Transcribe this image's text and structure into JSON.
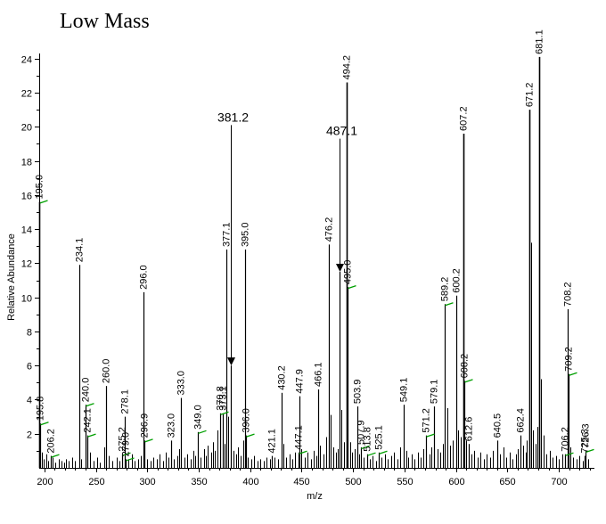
{
  "chart_data": {
    "type": "bar",
    "title": "Low Mass",
    "xlabel": "m/z",
    "ylabel": "Relative Abundance",
    "xlim": [
      195,
      732
    ],
    "ylim": [
      0,
      24.3
    ],
    "xticks": [
      200,
      250,
      300,
      350,
      400,
      450,
      500,
      550,
      600,
      650,
      700
    ],
    "yticks": [
      2,
      4,
      6,
      8,
      10,
      12,
      14,
      16,
      18,
      20,
      22,
      24
    ],
    "grid": false,
    "legend": "none",
    "peak_color": "#000000",
    "marker_color": "#00a000",
    "labeled_peaks": [
      {
        "x": 195.0,
        "y": 15.6,
        "label": "195.0",
        "marker": true
      },
      {
        "x": 195.8,
        "y": 2.6,
        "label": "195.8",
        "marker": true
      },
      {
        "x": 206.2,
        "y": 0.7,
        "label": "206.2",
        "marker": true
      },
      {
        "x": 234.1,
        "y": 11.9,
        "label": "234.1",
        "marker": false
      },
      {
        "x": 240.0,
        "y": 3.7,
        "label": "240.0",
        "marker": true
      },
      {
        "x": 242.1,
        "y": 1.9,
        "label": "242.1",
        "marker": true
      },
      {
        "x": 260.0,
        "y": 4.8,
        "label": "260.0",
        "marker": false
      },
      {
        "x": 275.2,
        "y": 0.8,
        "label": "275.2",
        "marker": true
      },
      {
        "x": 278.1,
        "y": 3.0,
        "label": "278.1",
        "marker": false
      },
      {
        "x": 279.0,
        "y": 0.5,
        "label": "279.0",
        "marker": true
      },
      {
        "x": 296.0,
        "y": 10.3,
        "label": "296.0",
        "marker": false
      },
      {
        "x": 296.9,
        "y": 1.6,
        "label": "296.9",
        "marker": true
      },
      {
        "x": 323.0,
        "y": 1.6,
        "label": "323.0",
        "marker": false
      },
      {
        "x": 333.0,
        "y": 4.1,
        "label": "333.0",
        "marker": false
      },
      {
        "x": 349.0,
        "y": 2.1,
        "label": "349.0",
        "marker": true
      },
      {
        "x": 370.8,
        "y": 3.2,
        "label": "370.8",
        "marker": true
      },
      {
        "x": 373.1,
        "y": 3.2,
        "label": "373.1",
        "marker": false
      },
      {
        "x": 377.1,
        "y": 12.8,
        "label": "377.1",
        "marker": false
      },
      {
        "x": 381.2,
        "y": 6.0,
        "label": "",
        "marker": false
      },
      {
        "x": 395.0,
        "y": 12.8,
        "label": "395.0",
        "marker": false
      },
      {
        "x": 396.0,
        "y": 1.9,
        "label": "396.0",
        "marker": true
      },
      {
        "x": 421.1,
        "y": 0.7,
        "label": "421.1",
        "marker": false
      },
      {
        "x": 430.2,
        "y": 4.4,
        "label": "430.2",
        "marker": false
      },
      {
        "x": 447.1,
        "y": 0.9,
        "label": "447.1",
        "marker": true
      },
      {
        "x": 447.9,
        "y": 4.2,
        "label": "447.9",
        "marker": false
      },
      {
        "x": 466.1,
        "y": 4.6,
        "label": "466.1",
        "marker": false
      },
      {
        "x": 476.2,
        "y": 13.1,
        "label": "476.2",
        "marker": false
      },
      {
        "x": 487.1,
        "y": 11.5,
        "label": "",
        "marker": false
      },
      {
        "x": 494.2,
        "y": 22.6,
        "label": "494.2",
        "marker": false
      },
      {
        "x": 495.0,
        "y": 10.6,
        "label": "495.0",
        "marker": true
      },
      {
        "x": 503.9,
        "y": 3.6,
        "label": "503.9",
        "marker": false
      },
      {
        "x": 507.9,
        "y": 1.2,
        "label": "507.9",
        "marker": true
      },
      {
        "x": 513.8,
        "y": 0.8,
        "label": "513.8",
        "marker": true
      },
      {
        "x": 525.1,
        "y": 0.9,
        "label": "525.1",
        "marker": true
      },
      {
        "x": 549.1,
        "y": 3.7,
        "label": "549.1",
        "marker": false
      },
      {
        "x": 571.2,
        "y": 1.9,
        "label": "571.2",
        "marker": true
      },
      {
        "x": 579.1,
        "y": 3.6,
        "label": "579.1",
        "marker": false
      },
      {
        "x": 589.2,
        "y": 9.6,
        "label": "589.2",
        "marker": true
      },
      {
        "x": 600.2,
        "y": 10.1,
        "label": "600.2",
        "marker": false
      },
      {
        "x": 607.2,
        "y": 19.6,
        "label": "607.2",
        "marker": false
      },
      {
        "x": 608.2,
        "y": 5.1,
        "label": "608.2",
        "marker": true
      },
      {
        "x": 612.6,
        "y": 1.4,
        "label": "612.6",
        "marker": false
      },
      {
        "x": 640.5,
        "y": 1.6,
        "label": "640.5",
        "marker": false
      },
      {
        "x": 662.4,
        "y": 1.9,
        "label": "662.4",
        "marker": false
      },
      {
        "x": 671.2,
        "y": 21.0,
        "label": "671.2",
        "marker": false
      },
      {
        "x": 681.1,
        "y": 24.1,
        "label": "681.1",
        "marker": false
      },
      {
        "x": 706.2,
        "y": 0.8,
        "label": "706.2",
        "marker": true
      },
      {
        "x": 708.2,
        "y": 9.3,
        "label": "708.2",
        "marker": false
      },
      {
        "x": 709.2,
        "y": 5.5,
        "label": "709.2",
        "marker": true
      },
      {
        "x": 725.3,
        "y": 0.7,
        "label": "725.3",
        "marker": false
      },
      {
        "x": 726.3,
        "y": 1.0,
        "label": "726.3",
        "marker": true
      }
    ],
    "unlabeled_peaks": [
      {
        "x": 197.5,
        "y": 0.9
      },
      {
        "x": 199.0,
        "y": 0.5
      },
      {
        "x": 201.5,
        "y": 0.8
      },
      {
        "x": 203.8,
        "y": 0.4
      },
      {
        "x": 208.0,
        "y": 0.6
      },
      {
        "x": 210.2,
        "y": 0.3
      },
      {
        "x": 214.0,
        "y": 0.5
      },
      {
        "x": 216.5,
        "y": 0.4
      },
      {
        "x": 219.0,
        "y": 0.3
      },
      {
        "x": 221.2,
        "y": 0.5
      },
      {
        "x": 223.8,
        "y": 0.4
      },
      {
        "x": 227.0,
        "y": 0.6
      },
      {
        "x": 230.0,
        "y": 0.4
      },
      {
        "x": 236.0,
        "y": 0.5
      },
      {
        "x": 244.5,
        "y": 0.9
      },
      {
        "x": 248.0,
        "y": 0.4
      },
      {
        "x": 251.0,
        "y": 0.6
      },
      {
        "x": 254.0,
        "y": 0.3
      },
      {
        "x": 258.0,
        "y": 1.2
      },
      {
        "x": 262.5,
        "y": 0.7
      },
      {
        "x": 266.0,
        "y": 0.4
      },
      {
        "x": 270.0,
        "y": 0.6
      },
      {
        "x": 273.0,
        "y": 0.4
      },
      {
        "x": 281.5,
        "y": 0.5
      },
      {
        "x": 285.0,
        "y": 0.8
      },
      {
        "x": 288.0,
        "y": 0.4
      },
      {
        "x": 291.0,
        "y": 0.5
      },
      {
        "x": 294.0,
        "y": 0.7
      },
      {
        "x": 300.0,
        "y": 0.5
      },
      {
        "x": 303.0,
        "y": 0.4
      },
      {
        "x": 306.0,
        "y": 0.6
      },
      {
        "x": 309.0,
        "y": 0.5
      },
      {
        "x": 312.0,
        "y": 0.8
      },
      {
        "x": 315.0,
        "y": 0.4
      },
      {
        "x": 318.0,
        "y": 0.9
      },
      {
        "x": 321.0,
        "y": 0.6
      },
      {
        "x": 326.0,
        "y": 0.5
      },
      {
        "x": 329.0,
        "y": 0.7
      },
      {
        "x": 331.0,
        "y": 1.1
      },
      {
        "x": 336.0,
        "y": 0.6
      },
      {
        "x": 339.0,
        "y": 0.8
      },
      {
        "x": 342.0,
        "y": 0.5
      },
      {
        "x": 345.0,
        "y": 1.0
      },
      {
        "x": 347.0,
        "y": 0.7
      },
      {
        "x": 352.0,
        "y": 0.6
      },
      {
        "x": 355.0,
        "y": 1.1
      },
      {
        "x": 357.0,
        "y": 0.7
      },
      {
        "x": 359.0,
        "y": 1.3
      },
      {
        "x": 362.0,
        "y": 0.9
      },
      {
        "x": 364.0,
        "y": 1.5
      },
      {
        "x": 366.0,
        "y": 1.0
      },
      {
        "x": 368.0,
        "y": 2.2
      },
      {
        "x": 375.0,
        "y": 1.4
      },
      {
        "x": 379.0,
        "y": 3.0
      },
      {
        "x": 383.5,
        "y": 1.0
      },
      {
        "x": 386.0,
        "y": 0.8
      },
      {
        "x": 388.0,
        "y": 1.2
      },
      {
        "x": 390.5,
        "y": 0.7
      },
      {
        "x": 393.0,
        "y": 1.6
      },
      {
        "x": 398.0,
        "y": 0.6
      },
      {
        "x": 401.0,
        "y": 0.5
      },
      {
        "x": 404.0,
        "y": 0.7
      },
      {
        "x": 407.0,
        "y": 0.4
      },
      {
        "x": 410.0,
        "y": 0.5
      },
      {
        "x": 413.0,
        "y": 0.4
      },
      {
        "x": 416.0,
        "y": 0.6
      },
      {
        "x": 419.0,
        "y": 0.5
      },
      {
        "x": 424.0,
        "y": 0.6
      },
      {
        "x": 427.0,
        "y": 0.5
      },
      {
        "x": 432.0,
        "y": 1.4
      },
      {
        "x": 435.0,
        "y": 0.6
      },
      {
        "x": 438.0,
        "y": 0.8
      },
      {
        "x": 441.0,
        "y": 0.5
      },
      {
        "x": 444.0,
        "y": 0.9
      },
      {
        "x": 450.0,
        "y": 1.1
      },
      {
        "x": 453.0,
        "y": 0.6
      },
      {
        "x": 456.0,
        "y": 0.9
      },
      {
        "x": 459.0,
        "y": 0.5
      },
      {
        "x": 462.0,
        "y": 1.0
      },
      {
        "x": 464.0,
        "y": 0.7
      },
      {
        "x": 468.0,
        "y": 1.3
      },
      {
        "x": 471.0,
        "y": 0.8
      },
      {
        "x": 473.5,
        "y": 1.8
      },
      {
        "x": 478.0,
        "y": 3.1
      },
      {
        "x": 480.5,
        "y": 1.2
      },
      {
        "x": 483.0,
        "y": 0.9
      },
      {
        "x": 485.0,
        "y": 1.1
      },
      {
        "x": 489.0,
        "y": 3.4
      },
      {
        "x": 491.0,
        "y": 1.5
      },
      {
        "x": 497.0,
        "y": 1.5
      },
      {
        "x": 499.0,
        "y": 0.9
      },
      {
        "x": 501.5,
        "y": 1.1
      },
      {
        "x": 506.0,
        "y": 0.8
      },
      {
        "x": 510.5,
        "y": 0.6
      },
      {
        "x": 516.0,
        "y": 0.5
      },
      {
        "x": 519.0,
        "y": 0.7
      },
      {
        "x": 522.0,
        "y": 0.4
      },
      {
        "x": 528.0,
        "y": 0.6
      },
      {
        "x": 531.0,
        "y": 0.8
      },
      {
        "x": 534.0,
        "y": 0.5
      },
      {
        "x": 537.0,
        "y": 0.7
      },
      {
        "x": 540.0,
        "y": 0.9
      },
      {
        "x": 543.0,
        "y": 0.5
      },
      {
        "x": 546.0,
        "y": 1.2
      },
      {
        "x": 551.5,
        "y": 1.0
      },
      {
        "x": 554.0,
        "y": 0.6
      },
      {
        "x": 557.0,
        "y": 0.8
      },
      {
        "x": 560.0,
        "y": 0.5
      },
      {
        "x": 563.0,
        "y": 0.9
      },
      {
        "x": 566.0,
        "y": 0.6
      },
      {
        "x": 568.5,
        "y": 1.1
      },
      {
        "x": 574.0,
        "y": 0.8
      },
      {
        "x": 576.5,
        "y": 1.2
      },
      {
        "x": 582.0,
        "y": 1.1
      },
      {
        "x": 585.0,
        "y": 0.9
      },
      {
        "x": 587.0,
        "y": 1.4
      },
      {
        "x": 591.5,
        "y": 3.5
      },
      {
        "x": 594.0,
        "y": 1.3
      },
      {
        "x": 597.0,
        "y": 1.6
      },
      {
        "x": 602.5,
        "y": 2.2
      },
      {
        "x": 605.0,
        "y": 1.8
      },
      {
        "x": 610.0,
        "y": 1.6
      },
      {
        "x": 615.0,
        "y": 0.8
      },
      {
        "x": 618.0,
        "y": 1.0
      },
      {
        "x": 621.0,
        "y": 0.6
      },
      {
        "x": 624.0,
        "y": 0.9
      },
      {
        "x": 627.0,
        "y": 0.5
      },
      {
        "x": 630.0,
        "y": 0.8
      },
      {
        "x": 633.0,
        "y": 0.6
      },
      {
        "x": 636.0,
        "y": 1.0
      },
      {
        "x": 643.0,
        "y": 0.8
      },
      {
        "x": 646.0,
        "y": 1.2
      },
      {
        "x": 649.0,
        "y": 0.6
      },
      {
        "x": 652.0,
        "y": 0.9
      },
      {
        "x": 655.0,
        "y": 0.5
      },
      {
        "x": 658.0,
        "y": 0.8
      },
      {
        "x": 660.0,
        "y": 1.1
      },
      {
        "x": 665.0,
        "y": 1.3
      },
      {
        "x": 667.5,
        "y": 0.9
      },
      {
        "x": 669.0,
        "y": 1.6
      },
      {
        "x": 673.0,
        "y": 13.2
      },
      {
        "x": 675.0,
        "y": 2.2
      },
      {
        "x": 677.5,
        "y": 1.4
      },
      {
        "x": 679.0,
        "y": 2.4
      },
      {
        "x": 683.0,
        "y": 5.2
      },
      {
        "x": 685.0,
        "y": 1.9
      },
      {
        "x": 688.0,
        "y": 0.8
      },
      {
        "x": 691.0,
        "y": 1.0
      },
      {
        "x": 694.0,
        "y": 0.6
      },
      {
        "x": 697.0,
        "y": 0.7
      },
      {
        "x": 700.0,
        "y": 0.5
      },
      {
        "x": 703.0,
        "y": 0.8
      },
      {
        "x": 711.0,
        "y": 1.2
      },
      {
        "x": 714.0,
        "y": 0.6
      },
      {
        "x": 717.0,
        "y": 0.5
      },
      {
        "x": 720.0,
        "y": 0.7
      },
      {
        "x": 723.0,
        "y": 0.4
      },
      {
        "x": 728.5,
        "y": 0.5
      }
    ],
    "callouts": [
      {
        "label": "381.2",
        "target_x": 381.2,
        "arrow_to_y": 6.0,
        "line_top_y": 20.1
      },
      {
        "label": "487.1",
        "target_x": 487.1,
        "arrow_to_y": 11.5,
        "line_top_y": 19.3
      }
    ]
  }
}
